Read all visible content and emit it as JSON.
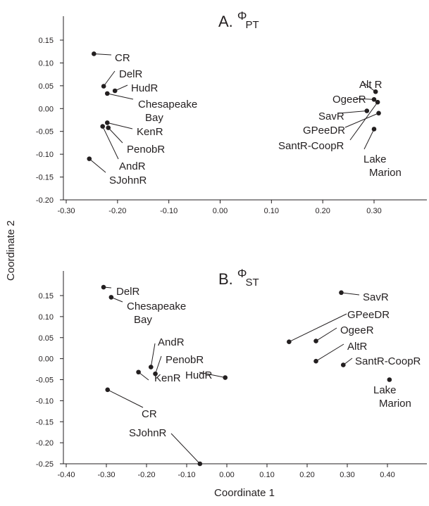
{
  "figure": {
    "xlabel": "Coordinate 1",
    "ylabel": "Coordinate 2"
  },
  "chart_data": [
    {
      "type": "scatter",
      "panel": "A",
      "title_prefix": "A. ",
      "title_phi": "Φ",
      "title_sub": "PT",
      "xlabel": "",
      "ylabel": "",
      "xlim": [
        -0.3,
        0.4
      ],
      "ylim": [
        -0.2,
        0.15
      ],
      "xticks": [
        "-0.30",
        "-0.20",
        "-0.10",
        "0.00",
        "0.10",
        "0.20",
        "0.30"
      ],
      "yticks": [
        "0.15",
        "0.10",
        "0.05",
        "0.00",
        "-0.05",
        "-0.10",
        "-0.15",
        "-0.20"
      ],
      "grid": false,
      "points": [
        {
          "label": [
            "CR"
          ],
          "x": -0.246,
          "y": 0.12
        },
        {
          "label": [
            "DelR"
          ],
          "x": -0.227,
          "y": 0.049
        },
        {
          "label": [
            "HudR"
          ],
          "x": -0.205,
          "y": 0.039
        },
        {
          "label": [
            "Chesapeake",
            "Bay"
          ],
          "x": -0.22,
          "y": 0.033
        },
        {
          "label": [
            "KenR"
          ],
          "x": -0.22,
          "y": -0.031
        },
        {
          "label": [
            "PenobR"
          ],
          "x": -0.218,
          "y": -0.042
        },
        {
          "label": [
            "AndR"
          ],
          "x": -0.229,
          "y": -0.039
        },
        {
          "label": [
            "SJohnR"
          ],
          "x": -0.255,
          "y": -0.11
        },
        {
          "label": [
            "Alt R"
          ],
          "x": 0.303,
          "y": 0.037
        },
        {
          "label": [
            "OgeeR"
          ],
          "x": 0.3,
          "y": 0.02
        },
        {
          "label": [
            "SavR"
          ],
          "x": 0.286,
          "y": -0.005
        },
        {
          "label": [
            "GPeeDR"
          ],
          "x": 0.309,
          "y": -0.01
        },
        {
          "label": [
            "SantR-CoopR"
          ],
          "x": 0.307,
          "y": 0.014
        },
        {
          "label": [
            "Lake",
            "Marion"
          ],
          "x": 0.3,
          "y": -0.045
        }
      ]
    },
    {
      "type": "scatter",
      "panel": "B",
      "title_prefix": "B. ",
      "title_phi": "Φ",
      "title_sub": "ST",
      "xlabel": "",
      "ylabel": "",
      "xlim": [
        -0.4,
        0.5
      ],
      "ylim": [
        -0.3,
        0.2
      ],
      "xticks": [
        "-0.40",
        "-0.30",
        "-0.20",
        "-0.10",
        "0.00",
        "0.10",
        "0.20",
        "0.30",
        "0.40"
      ],
      "yticks": [
        "0.15",
        "0.10",
        "0.05",
        "0.00",
        "-0.05",
        "-0.10",
        "-0.15",
        "-0.20",
        "-0.25"
      ],
      "grid": false,
      "points": [
        {
          "label": [
            "DelR"
          ],
          "x": -0.307,
          "y": 0.17
        },
        {
          "label": [
            "Chesapeake",
            "Bay"
          ],
          "x": -0.288,
          "y": 0.146
        },
        {
          "label": [
            "AndR"
          ],
          "x": -0.189,
          "y": -0.02
        },
        {
          "label": [
            "PenobR"
          ],
          "x": -0.178,
          "y": -0.036
        },
        {
          "label": [
            "KenR"
          ],
          "x": -0.22,
          "y": -0.032
        },
        {
          "label": [
            "HudR"
          ],
          "x": -0.004,
          "y": -0.045
        },
        {
          "label": [
            "CR"
          ],
          "x": -0.297,
          "y": -0.074
        },
        {
          "label": [
            "SJohnR"
          ],
          "x": -0.067,
          "y": -0.25
        },
        {
          "label": [
            "SavR"
          ],
          "x": 0.285,
          "y": 0.157
        },
        {
          "label": [
            "GPeeDR"
          ],
          "x": 0.155,
          "y": 0.04
        },
        {
          "label": [
            "OgeeR"
          ],
          "x": 0.222,
          "y": 0.042
        },
        {
          "label": [
            "AltR"
          ],
          "x": 0.222,
          "y": -0.006
        },
        {
          "label": [
            "SantR-CoopR"
          ],
          "x": 0.29,
          "y": -0.015
        },
        {
          "label": [
            "Lake",
            "Marion"
          ],
          "x": 0.405,
          "y": -0.05
        }
      ]
    }
  ]
}
